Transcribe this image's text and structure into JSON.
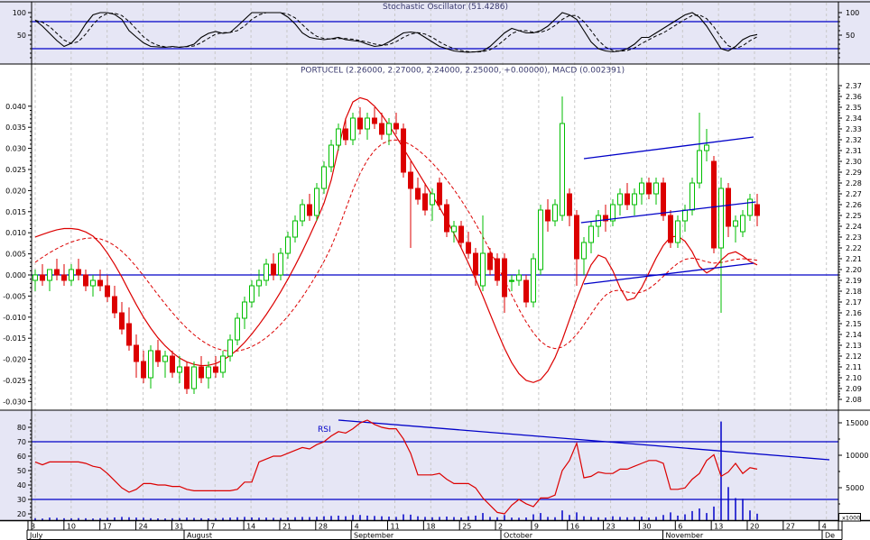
{
  "panels": {
    "stochastic": {
      "title": "Stochastic Oscillator (51.4286)",
      "axis_labels": [
        100,
        50
      ],
      "upper_band": 80,
      "lower_band": 20
    },
    "main": {
      "title": "PORTUCEL (2.26000, 2.27000, 2.24000, 2.25000, +0.00000), MACD (0.002391)",
      "macd_axis": {
        "min": -0.03,
        "max": 0.04,
        "step": 0.005
      },
      "price_axis": {
        "min": 2.08,
        "max": 2.37,
        "step": 0.01
      },
      "zero_line": 0.0
    },
    "rsi": {
      "label": "RSI",
      "left_axis": [
        80,
        70,
        60,
        50,
        40,
        30,
        20
      ],
      "upper_band": 70,
      "lower_band": 30,
      "volume_axis": [
        15000,
        10000,
        5000
      ],
      "volume_unit": "x1000"
    }
  },
  "axis_x": {
    "week_labels": [
      "3",
      "10",
      "17",
      "24",
      "31",
      "7",
      "14",
      "21",
      "28",
      "4",
      "11",
      "18",
      "25",
      "2",
      "9",
      "16",
      "23",
      "30",
      "6",
      "13",
      "20",
      "27",
      "4"
    ],
    "month_labels": [
      "July",
      "August",
      "September",
      "October",
      "November",
      "De"
    ]
  },
  "chart_data": {
    "type": "candlestick+indicators",
    "symbol": "PORTUCEL",
    "last_quote": {
      "open": 2.26,
      "high": 2.27,
      "low": 2.24,
      "close": 2.25,
      "change": 0.0,
      "macd": 0.002391,
      "stochastic": 51.4286
    },
    "ohlc": [
      [
        2.19,
        2.2,
        2.18,
        2.195
      ],
      [
        2.195,
        2.205,
        2.185,
        2.19
      ],
      [
        2.19,
        2.2,
        2.18,
        2.2
      ],
      [
        2.2,
        2.21,
        2.19,
        2.195
      ],
      [
        2.195,
        2.205,
        2.185,
        2.19
      ],
      [
        2.19,
        2.205,
        2.185,
        2.2
      ],
      [
        2.2,
        2.21,
        2.19,
        2.195
      ],
      [
        2.195,
        2.2,
        2.18,
        2.185
      ],
      [
        2.185,
        2.195,
        2.175,
        2.19
      ],
      [
        2.19,
        2.2,
        2.18,
        2.185
      ],
      [
        2.185,
        2.195,
        2.17,
        2.175
      ],
      [
        2.175,
        2.185,
        2.155,
        2.16
      ],
      [
        2.16,
        2.17,
        2.14,
        2.145
      ],
      [
        2.15,
        2.165,
        2.125,
        2.13
      ],
      [
        2.13,
        2.14,
        2.1,
        2.115
      ],
      [
        2.115,
        2.125,
        2.095,
        2.1
      ],
      [
        2.1,
        2.13,
        2.09,
        2.125
      ],
      [
        2.125,
        2.135,
        2.11,
        2.115
      ],
      [
        2.115,
        2.125,
        2.1,
        2.12
      ],
      [
        2.12,
        2.125,
        2.1,
        2.105
      ],
      [
        2.105,
        2.12,
        2.095,
        2.11
      ],
      [
        2.11,
        2.115,
        2.085,
        2.09
      ],
      [
        2.09,
        2.115,
        2.085,
        2.11
      ],
      [
        2.11,
        2.12,
        2.095,
        2.1
      ],
      [
        2.1,
        2.115,
        2.09,
        2.11
      ],
      [
        2.11,
        2.12,
        2.1,
        2.105
      ],
      [
        2.105,
        2.125,
        2.1,
        2.12
      ],
      [
        2.12,
        2.14,
        2.115,
        2.135
      ],
      [
        2.135,
        2.16,
        2.13,
        2.155
      ],
      [
        2.155,
        2.175,
        2.145,
        2.17
      ],
      [
        2.17,
        2.19,
        2.165,
        2.185
      ],
      [
        2.185,
        2.2,
        2.175,
        2.19
      ],
      [
        2.19,
        2.21,
        2.185,
        2.205
      ],
      [
        2.205,
        2.215,
        2.19,
        2.195
      ],
      [
        2.195,
        2.22,
        2.19,
        2.215
      ],
      [
        2.215,
        2.235,
        2.21,
        2.23
      ],
      [
        2.23,
        2.25,
        2.225,
        2.245
      ],
      [
        2.245,
        2.265,
        2.24,
        2.26
      ],
      [
        2.26,
        2.27,
        2.245,
        2.25
      ],
      [
        2.25,
        2.28,
        2.245,
        2.275
      ],
      [
        2.275,
        2.3,
        2.27,
        2.295
      ],
      [
        2.295,
        2.32,
        2.29,
        2.315
      ],
      [
        2.315,
        2.335,
        2.31,
        2.33
      ],
      [
        2.33,
        2.34,
        2.315,
        2.32
      ],
      [
        2.32,
        2.345,
        2.315,
        2.34
      ],
      [
        2.34,
        2.35,
        2.325,
        2.33
      ],
      [
        2.33,
        2.345,
        2.32,
        2.34
      ],
      [
        2.34,
        2.35,
        2.33,
        2.335
      ],
      [
        2.335,
        2.345,
        2.32,
        2.325
      ],
      [
        2.325,
        2.34,
        2.315,
        2.335
      ],
      [
        2.335,
        2.345,
        2.325,
        2.33
      ],
      [
        2.33,
        2.335,
        2.285,
        2.29
      ],
      [
        2.29,
        2.3,
        2.22,
        2.275
      ],
      [
        2.275,
        2.285,
        2.26,
        2.265
      ],
      [
        2.27,
        2.28,
        2.25,
        2.255
      ],
      [
        2.26,
        2.275,
        2.245,
        2.27
      ],
      [
        2.28,
        2.285,
        2.255,
        2.26
      ],
      [
        2.26,
        2.265,
        2.23,
        2.235
      ],
      [
        2.235,
        2.245,
        2.225,
        2.24
      ],
      [
        2.24,
        2.245,
        2.22,
        2.225
      ],
      [
        2.225,
        2.235,
        2.21,
        2.215
      ],
      [
        2.215,
        2.22,
        2.185,
        2.195
      ],
      [
        2.185,
        2.25,
        2.18,
        2.215
      ],
      [
        2.215,
        2.22,
        2.195,
        2.2
      ],
      [
        2.21,
        2.215,
        2.185,
        2.19
      ],
      [
        2.21,
        2.215,
        2.16,
        2.175
      ],
      [
        2.19,
        2.195,
        2.18,
        2.19
      ],
      [
        2.19,
        2.2,
        2.185,
        2.195
      ],
      [
        2.19,
        2.195,
        2.165,
        2.17
      ],
      [
        2.17,
        2.215,
        2.165,
        2.21
      ],
      [
        2.2,
        2.26,
        2.195,
        2.255
      ],
      [
        2.255,
        2.265,
        2.235,
        2.245
      ],
      [
        2.245,
        2.265,
        2.24,
        2.26
      ],
      [
        2.25,
        2.36,
        2.245,
        2.335
      ],
      [
        2.27,
        2.275,
        2.24,
        2.25
      ],
      [
        2.25,
        2.255,
        2.185,
        2.21
      ],
      [
        2.21,
        2.23,
        2.195,
        2.225
      ],
      [
        2.225,
        2.245,
        2.215,
        2.24
      ],
      [
        2.24,
        2.255,
        2.23,
        2.25
      ],
      [
        2.25,
        2.26,
        2.235,
        2.245
      ],
      [
        2.245,
        2.265,
        2.24,
        2.26
      ],
      [
        2.26,
        2.275,
        2.25,
        2.27
      ],
      [
        2.27,
        2.28,
        2.255,
        2.26
      ],
      [
        2.26,
        2.275,
        2.25,
        2.27
      ],
      [
        2.27,
        2.285,
        2.26,
        2.28
      ],
      [
        2.28,
        2.285,
        2.265,
        2.27
      ],
      [
        2.27,
        2.285,
        2.26,
        2.28
      ],
      [
        2.28,
        2.285,
        2.245,
        2.25
      ],
      [
        2.25,
        2.255,
        2.22,
        2.225
      ],
      [
        2.225,
        2.25,
        2.22,
        2.245
      ],
      [
        2.245,
        2.26,
        2.235,
        2.255
      ],
      [
        2.255,
        2.285,
        2.25,
        2.28
      ],
      [
        2.28,
        2.345,
        2.275,
        2.31
      ],
      [
        2.31,
        2.33,
        2.3,
        2.315
      ],
      [
        2.3,
        2.305,
        2.215,
        2.22
      ],
      [
        2.22,
        2.285,
        2.16,
        2.275
      ],
      [
        2.275,
        2.28,
        2.23,
        2.24
      ],
      [
        2.24,
        2.25,
        2.225,
        2.245
      ],
      [
        2.235,
        2.255,
        2.23,
        2.25
      ],
      [
        2.25,
        2.27,
        2.245,
        2.265
      ],
      [
        2.26,
        2.27,
        2.24,
        2.25
      ]
    ],
    "stochastic_k": [
      83,
      70,
      54,
      38,
      25,
      32,
      50,
      75,
      95,
      100,
      100,
      96,
      85,
      60,
      46,
      33,
      25,
      24,
      23,
      25,
      23,
      25,
      30,
      45,
      54,
      58,
      54,
      56,
      70,
      85,
      100,
      100,
      100,
      100,
      100,
      90,
      75,
      55,
      45,
      42,
      40,
      42,
      45,
      40,
      38,
      36,
      30,
      25,
      27,
      35,
      45,
      55,
      57,
      55,
      45,
      35,
      25,
      20,
      15,
      13,
      12,
      13,
      15,
      25,
      40,
      55,
      65,
      60,
      55,
      55,
      60,
      70,
      85,
      100,
      95,
      85,
      60,
      35,
      20,
      15,
      13,
      15,
      20,
      30,
      45,
      45,
      55,
      65,
      75,
      85,
      95,
      100,
      90,
      70,
      45,
      20,
      15,
      25,
      40,
      48,
      51.4
    ],
    "macd": [
      0.009,
      0.0096,
      0.0102,
      0.0107,
      0.011,
      0.011,
      0.0108,
      0.0102,
      0.0092,
      0.0075,
      0.0052,
      0.0025,
      -0.0005,
      -0.0038,
      -0.007,
      -0.01,
      -0.0126,
      -0.0149,
      -0.0168,
      -0.0184,
      -0.0197,
      -0.0206,
      -0.0212,
      -0.0215,
      -0.0214,
      -0.021,
      -0.0202,
      -0.0191,
      -0.0177,
      -0.016,
      -0.014,
      -0.0118,
      -0.0094,
      -0.0068,
      -0.004,
      -0.001,
      0.0022,
      0.0056,
      0.0092,
      0.013,
      0.017,
      0.0225,
      0.03,
      0.037,
      0.041,
      0.042,
      0.0415,
      0.04,
      0.038,
      0.0355,
      0.0328,
      0.03,
      0.0272,
      0.0244,
      0.0216,
      0.0188,
      0.016,
      0.013,
      0.0098,
      0.0064,
      0.0028,
      -0.001,
      -0.005,
      -0.0092,
      -0.0134,
      -0.0174,
      -0.0208,
      -0.0234,
      -0.025,
      -0.0255,
      -0.0248,
      -0.0228,
      -0.0196,
      -0.0154,
      -0.0106,
      -0.0058,
      -0.0014,
      0.0024,
      0.0047,
      0.004,
      0.001,
      -0.003,
      -0.006,
      -0.0055,
      -0.003,
      0.0005,
      0.004,
      0.007,
      0.009,
      0.0092,
      0.008,
      0.0055,
      0.002,
      0.0005,
      0.0015,
      0.0035,
      0.005,
      0.0055,
      0.0045,
      0.0032,
      0.0024
    ],
    "rsi": [
      56,
      54,
      56,
      56,
      56,
      56,
      56,
      55,
      53,
      52,
      48,
      43,
      38,
      35,
      37,
      41,
      41,
      40,
      40,
      39,
      39,
      37,
      36,
      36,
      36,
      36,
      36,
      36,
      37,
      42,
      42,
      56,
      58,
      60,
      60,
      62,
      64,
      66,
      65,
      68,
      70,
      74,
      77,
      76,
      79,
      83,
      85,
      82,
      80,
      79,
      79,
      72,
      62,
      47,
      47,
      47,
      48,
      44,
      41,
      41,
      41,
      38,
      31,
      26,
      21,
      20,
      26,
      30,
      27,
      25,
      31,
      31,
      33,
      50,
      57,
      69,
      45,
      46,
      49,
      48,
      48,
      51,
      51,
      53,
      55,
      57,
      57,
      55,
      37,
      37,
      38,
      44,
      48,
      57,
      61,
      46,
      49,
      55,
      48,
      52,
      51
    ],
    "volume": [
      300,
      250,
      400,
      350,
      300,
      280,
      320,
      300,
      260,
      300,
      350,
      420,
      500,
      450,
      400,
      380,
      300,
      280,
      260,
      300,
      320,
      400,
      350,
      300,
      280,
      300,
      350,
      400,
      450,
      500,
      420,
      380,
      400,
      360,
      340,
      400,
      450,
      500,
      480,
      520,
      600,
      650,
      700,
      600,
      800,
      800,
      700,
      650,
      600,
      550,
      500,
      900,
      850,
      600,
      500,
      450,
      500,
      550,
      480,
      420,
      600,
      700,
      1100,
      500,
      450,
      800,
      400,
      380,
      420,
      900,
      1100,
      500,
      450,
      1500,
      800,
      1200,
      600,
      500,
      450,
      400,
      600,
      500,
      450,
      500,
      550,
      400,
      500,
      800,
      1200,
      700,
      900,
      1400,
      1800,
      1100,
      2100,
      15200,
      5100,
      3400,
      3300,
      1500,
      1000
    ],
    "trendlines": {
      "price_channel": [
        {
          "d1": 76,
          "p1": 2.3025,
          "d2": 99.5,
          "p2": 2.3225
        },
        {
          "d1": 75.6,
          "p1": 2.2433,
          "d2": 99.8,
          "p2": 2.2625
        },
        {
          "d1": 76,
          "p1": 2.1867,
          "d2": 99.5,
          "p2": 2.2058
        }
      ],
      "rsi_trendline": {
        "d1": 42,
        "v1": 85,
        "d2": 110,
        "v2": 57.5
      }
    },
    "colors": {
      "up": "#00BE00",
      "down": "#DC0000",
      "indicator_red": "#DC0000",
      "blue": "#0000C8",
      "panel_bg": "#E6E6F5",
      "grid": "#C8C8C8",
      "stochastic_line": "#000000"
    }
  }
}
